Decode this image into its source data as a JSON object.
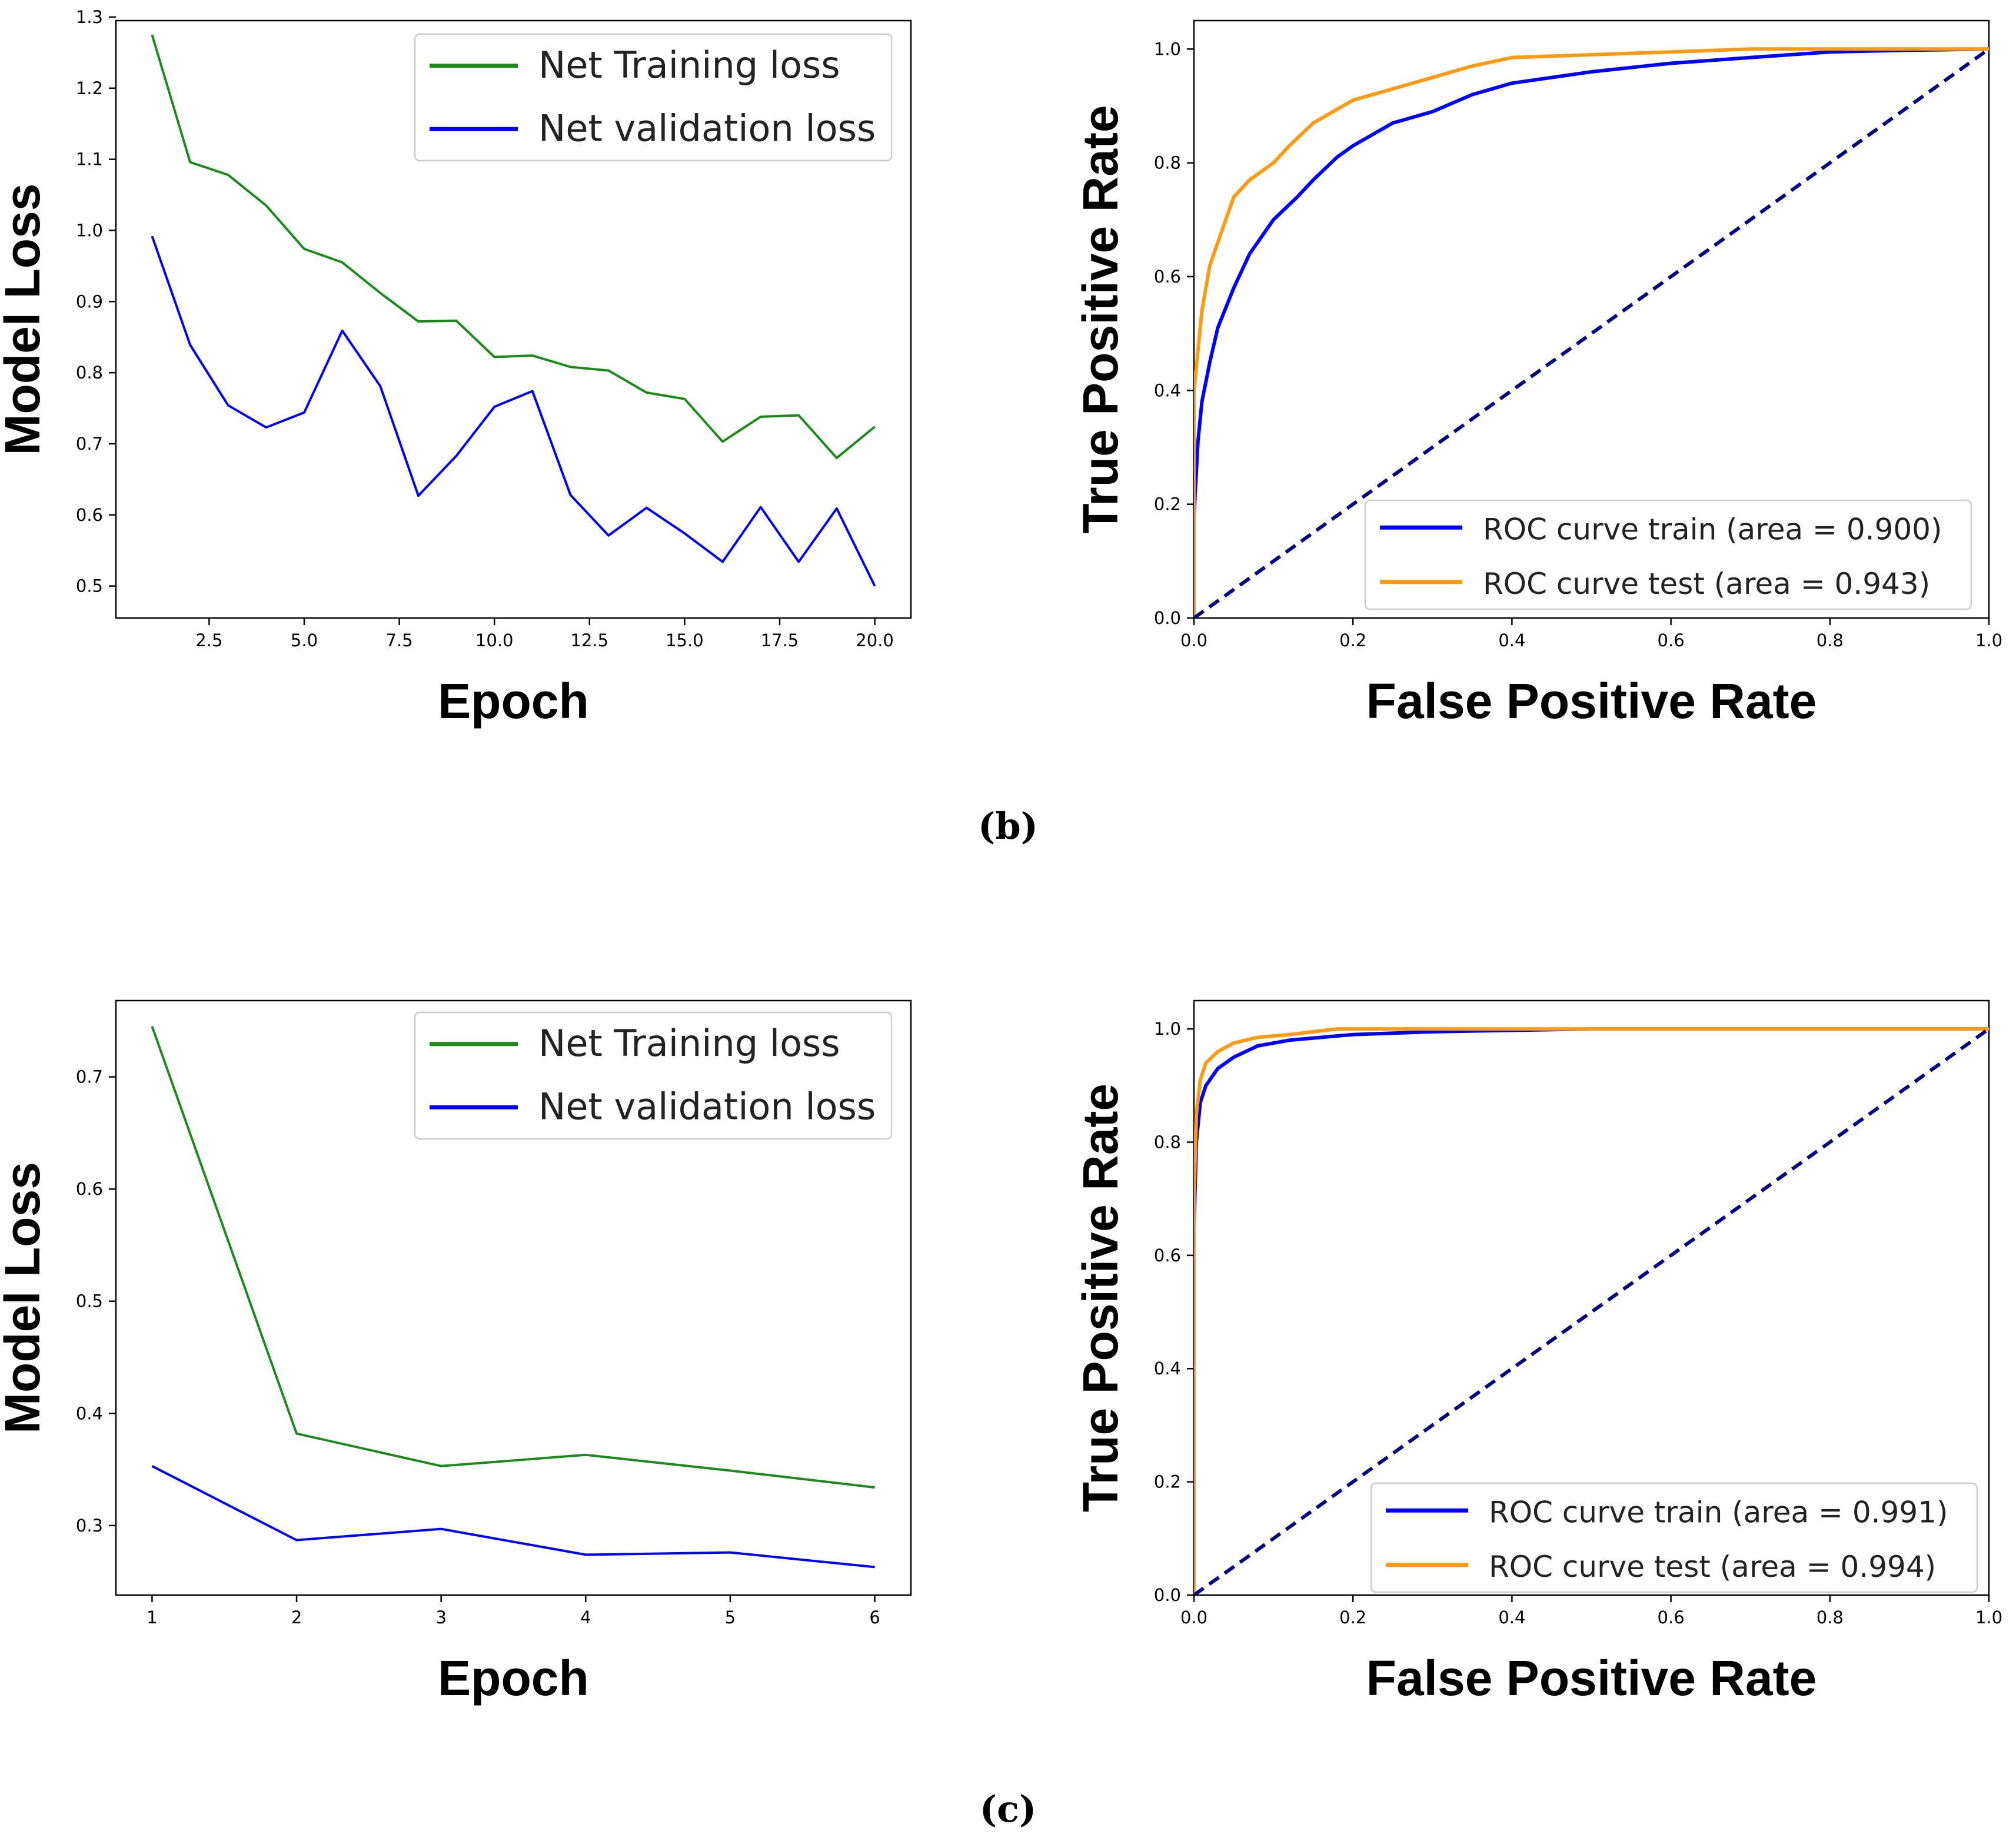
{
  "captions": {
    "b": "(b)",
    "c": "(c)"
  },
  "chart_data": [
    {
      "id": "loss_b",
      "type": "line",
      "xlabel": "Epoch",
      "ylabel": "Model Loss",
      "xlim": [
        0.05,
        20.95
      ],
      "ylim": [
        0.455,
        1.295
      ],
      "xticks": [
        2.5,
        5.0,
        7.5,
        10.0,
        12.5,
        15.0,
        17.5,
        20.0
      ],
      "xtick_labels": [
        "2.5",
        "5.0",
        "7.5",
        "10.0",
        "12.5",
        "15.0",
        "17.5",
        "20.0"
      ],
      "yticks": [
        0.5,
        0.6,
        0.7,
        0.8,
        0.9,
        1.0,
        1.1,
        1.2,
        1.3
      ],
      "ytick_labels": [
        "0.5",
        "0.6",
        "0.7",
        "0.8",
        "0.9",
        "1.0",
        "1.1",
        "1.2",
        "1.3"
      ],
      "legend_position": "top-right",
      "x": [
        1,
        2,
        3,
        4,
        5,
        6,
        7,
        8,
        9,
        10,
        11,
        12,
        13,
        14,
        15,
        16,
        17,
        18,
        19,
        20
      ],
      "series": [
        {
          "name": "Net Training loss",
          "color": "#1b8a1b",
          "values": [
            1.275,
            1.096,
            1.078,
            1.035,
            0.974,
            0.955,
            0.912,
            0.872,
            0.873,
            0.822,
            0.824,
            0.808,
            0.803,
            0.772,
            0.763,
            0.703,
            0.738,
            0.74,
            0.68,
            0.724
          ]
        },
        {
          "name": "Net validation loss",
          "color": "#0000ff",
          "values": [
            0.992,
            0.839,
            0.754,
            0.723,
            0.744,
            0.859,
            0.781,
            0.627,
            0.683,
            0.752,
            0.774,
            0.628,
            0.571,
            0.61,
            0.574,
            0.534,
            0.611,
            0.534,
            0.609,
            0.5
          ]
        }
      ]
    },
    {
      "id": "roc_b",
      "type": "line",
      "xlabel": "False Positive Rate",
      "ylabel": "True Positive Rate",
      "xlim": [
        0.0,
        1.0
      ],
      "ylim": [
        0.0,
        1.05
      ],
      "xticks": [
        0.0,
        0.2,
        0.4,
        0.6,
        0.8,
        1.0
      ],
      "xtick_labels": [
        "0.0",
        "0.2",
        "0.4",
        "0.6",
        "0.8",
        "1.0"
      ],
      "yticks": [
        0.0,
        0.2,
        0.4,
        0.6,
        0.8,
        1.0
      ],
      "ytick_labels": [
        "0.0",
        "0.2",
        "0.4",
        "0.6",
        "0.8",
        "1.0"
      ],
      "legend_position": "bottom-right",
      "series": [
        {
          "name": "ROC curve train (area = 0.900)",
          "color": "#0000ff",
          "x": [
            0,
            0,
            0.005,
            0.01,
            0.02,
            0.03,
            0.05,
            0.07,
            0.1,
            0.13,
            0.15,
            0.18,
            0.2,
            0.25,
            0.3,
            0.35,
            0.4,
            0.5,
            0.6,
            0.7,
            0.8,
            0.9,
            1.0
          ],
          "y": [
            0,
            0.18,
            0.31,
            0.38,
            0.45,
            0.51,
            0.58,
            0.64,
            0.7,
            0.74,
            0.77,
            0.81,
            0.83,
            0.87,
            0.89,
            0.92,
            0.94,
            0.96,
            0.975,
            0.985,
            0.995,
            0.998,
            1.0
          ]
        },
        {
          "name": "ROC curve test (area = 0.943)",
          "color": "#ff9a11",
          "x": [
            0,
            0,
            0.005,
            0.01,
            0.02,
            0.03,
            0.04,
            0.05,
            0.07,
            0.1,
            0.12,
            0.15,
            0.2,
            0.25,
            0.3,
            0.35,
            0.4,
            0.5,
            0.6,
            0.7,
            1.0
          ],
          "y": [
            0,
            0.4,
            0.47,
            0.54,
            0.62,
            0.66,
            0.7,
            0.74,
            0.77,
            0.8,
            0.83,
            0.87,
            0.91,
            0.93,
            0.95,
            0.97,
            0.985,
            0.99,
            0.995,
            1.0,
            1.0
          ]
        },
        {
          "name": "",
          "color": "#000080",
          "dashed": true,
          "x": [
            0,
            1
          ],
          "y": [
            0,
            1
          ]
        }
      ]
    },
    {
      "id": "loss_c",
      "type": "line",
      "xlabel": "Epoch",
      "ylabel": "Model Loss",
      "xlim": [
        0.75,
        6.25
      ],
      "ylim": [
        0.238,
        0.768
      ],
      "xticks": [
        1,
        2,
        3,
        4,
        5,
        6
      ],
      "xtick_labels": [
        "1",
        "2",
        "3",
        "4",
        "5",
        "6"
      ],
      "yticks": [
        0.3,
        0.4,
        0.5,
        0.6,
        0.7
      ],
      "ytick_labels": [
        "0.3",
        "0.4",
        "0.5",
        "0.6",
        "0.7"
      ],
      "legend_position": "top-right",
      "x": [
        1,
        2,
        3,
        4,
        5,
        6
      ],
      "series": [
        {
          "name": "Net Training loss",
          "color": "#1b8a1b",
          "values": [
            0.745,
            0.382,
            0.353,
            0.363,
            0.349,
            0.334
          ]
        },
        {
          "name": "Net validation loss",
          "color": "#0000ff",
          "values": [
            0.353,
            0.287,
            0.297,
            0.274,
            0.276,
            0.263
          ]
        }
      ]
    },
    {
      "id": "roc_c",
      "type": "line",
      "xlabel": "False Positive Rate",
      "ylabel": "True Positive Rate",
      "xlim": [
        0.0,
        1.0
      ],
      "ylim": [
        0.0,
        1.05
      ],
      "xticks": [
        0.0,
        0.2,
        0.4,
        0.6,
        0.8,
        1.0
      ],
      "xtick_labels": [
        "0.0",
        "0.2",
        "0.4",
        "0.6",
        "0.8",
        "1.0"
      ],
      "yticks": [
        0.0,
        0.2,
        0.4,
        0.6,
        0.8,
        1.0
      ],
      "ytick_labels": [
        "0.0",
        "0.2",
        "0.4",
        "0.6",
        "0.8",
        "1.0"
      ],
      "legend_position": "bottom-right",
      "series": [
        {
          "name": "ROC curve train (area = 0.991)",
          "color": "#0000ff",
          "x": [
            0,
            0,
            0.003,
            0.008,
            0.015,
            0.03,
            0.05,
            0.08,
            0.12,
            0.2,
            0.3,
            0.5,
            1.0
          ],
          "y": [
            0,
            0.65,
            0.8,
            0.87,
            0.9,
            0.93,
            0.95,
            0.97,
            0.98,
            0.99,
            0.995,
            1.0,
            1.0
          ]
        },
        {
          "name": "ROC curve test (area = 0.994)",
          "color": "#ff9a11",
          "x": [
            0,
            0,
            0.003,
            0.008,
            0.015,
            0.03,
            0.05,
            0.08,
            0.12,
            0.18,
            1.0
          ],
          "y": [
            0,
            0.7,
            0.85,
            0.91,
            0.94,
            0.96,
            0.975,
            0.985,
            0.99,
            1.0,
            1.0
          ]
        },
        {
          "name": "",
          "color": "#000080",
          "dashed": true,
          "x": [
            0,
            1
          ],
          "y": [
            0,
            1
          ]
        }
      ]
    }
  ]
}
